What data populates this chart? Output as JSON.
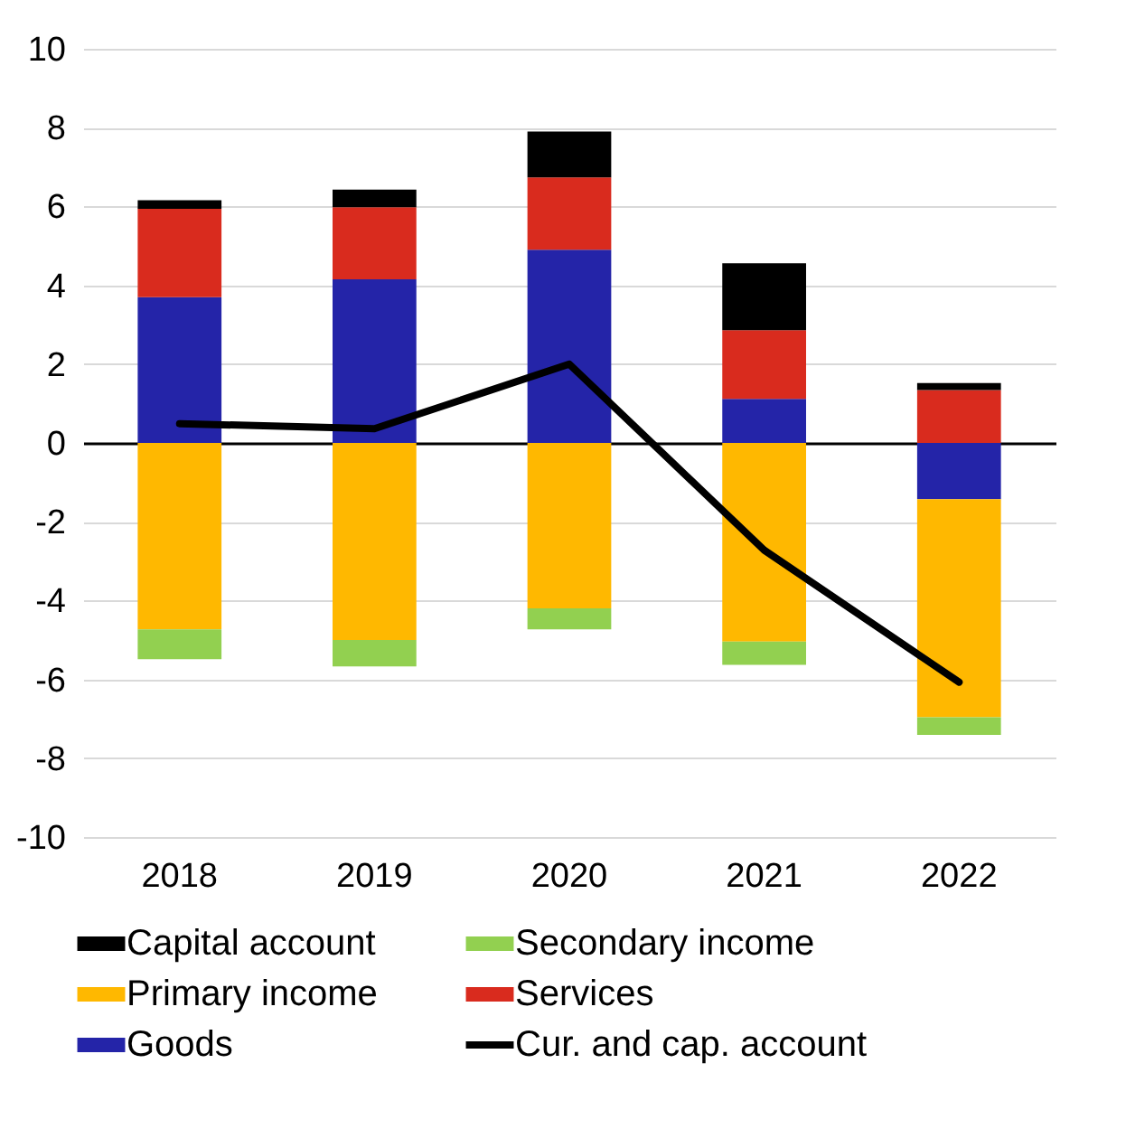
{
  "chart_data": {
    "type": "bar",
    "stacked": true,
    "categories": [
      "2018",
      "2019",
      "2020",
      "2021",
      "2022"
    ],
    "series": [
      {
        "name": "Goods",
        "color": "#2424a8",
        "values": [
          3.7,
          4.15,
          4.9,
          1.12,
          -1.43
        ]
      },
      {
        "name": "Services",
        "color": "#d92b1e",
        "values": [
          2.24,
          1.83,
          1.84,
          1.74,
          1.34
        ]
      },
      {
        "name": "Primary income",
        "color": "#ffb800",
        "values": [
          -4.73,
          -5.0,
          -4.2,
          -5.04,
          -5.53
        ]
      },
      {
        "name": "Secondary income",
        "color": "#92d050",
        "values": [
          -0.76,
          -0.67,
          -0.53,
          -0.59,
          -0.45
        ]
      },
      {
        "name": "Capital account",
        "color": "#000000",
        "values": [
          0.22,
          0.45,
          1.16,
          1.7,
          0.18
        ]
      },
      {
        "name": "Cur. and cap. account",
        "type": "line",
        "color": "#000000",
        "values": [
          0.49,
          0.36,
          2.0,
          -2.72,
          -6.07
        ]
      }
    ],
    "ylim": [
      -10,
      10
    ],
    "yticks": [
      -10,
      -8,
      -6,
      -4,
      -2,
      0,
      2,
      4,
      6,
      8,
      10
    ],
    "grid": "y",
    "legend": "bottom"
  }
}
